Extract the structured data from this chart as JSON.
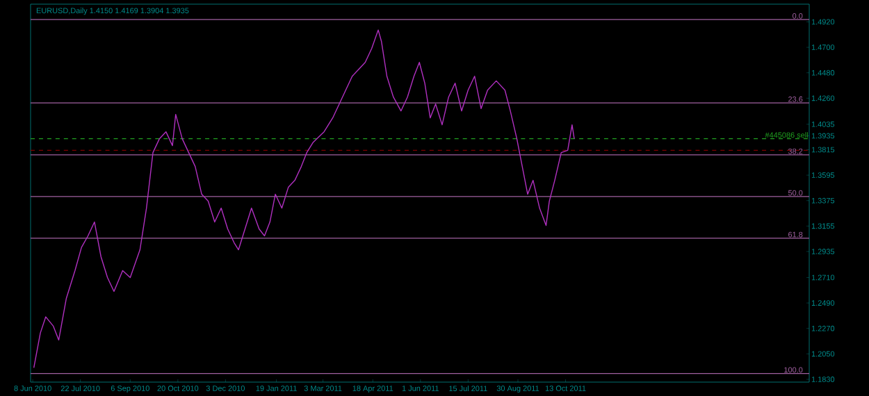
{
  "chart_data": {
    "type": "line",
    "title": "EURUSD,Daily  1.4150 1.4169 1.3904 1.3935",
    "color": "#b030c0",
    "marker": "none",
    "line_style": "solid",
    "x": [
      "2010-06-09",
      "2010-06-15",
      "2010-06-20",
      "2010-06-27",
      "2010-07-02",
      "2010-07-09",
      "2010-07-17",
      "2010-07-23",
      "2010-07-29",
      "2010-08-04",
      "2010-08-10",
      "2010-08-16",
      "2010-08-22",
      "2010-08-30",
      "2010-09-06",
      "2010-09-15",
      "2010-09-21",
      "2010-09-27",
      "2010-10-03",
      "2010-10-09",
      "2010-10-15",
      "2010-10-18",
      "2010-10-24",
      "2010-10-30",
      "2010-11-05",
      "2010-11-11",
      "2010-11-17",
      "2010-11-23",
      "2010-11-29",
      "2010-12-05",
      "2010-12-11",
      "2010-12-15",
      "2010-12-23",
      "2010-12-27",
      "2011-01-03",
      "2011-01-08",
      "2011-01-13",
      "2011-01-18",
      "2011-01-24",
      "2011-01-30",
      "2011-02-05",
      "2011-02-11",
      "2011-02-16",
      "2011-02-22",
      "2011-03-04",
      "2011-03-12",
      "2011-03-18",
      "2011-03-24",
      "2011-03-30",
      "2011-04-05",
      "2011-04-11",
      "2011-04-17",
      "2011-04-23",
      "2011-04-26",
      "2011-05-01",
      "2011-05-07",
      "2011-05-14",
      "2011-05-20",
      "2011-05-26",
      "2011-05-31",
      "2011-06-05",
      "2011-06-10",
      "2011-06-15",
      "2011-06-21",
      "2011-06-27",
      "2011-07-03",
      "2011-07-09",
      "2011-07-15",
      "2011-07-21",
      "2011-07-27",
      "2011-08-02",
      "2011-08-10",
      "2011-08-18",
      "2011-08-23",
      "2011-08-29",
      "2011-09-03",
      "2011-09-08",
      "2011-09-13",
      "2011-09-19",
      "2011-09-25",
      "2011-09-28",
      "2011-10-03",
      "2011-10-09",
      "2011-10-15",
      "2011-10-19",
      "2011-10-21"
    ],
    "values": [
      1.193,
      1.223,
      1.237,
      1.229,
      1.217,
      1.253,
      1.277,
      1.297,
      1.307,
      1.319,
      1.289,
      1.271,
      1.259,
      1.277,
      1.271,
      1.295,
      1.331,
      1.379,
      1.391,
      1.397,
      1.385,
      1.412,
      1.391,
      1.379,
      1.367,
      1.343,
      1.337,
      1.319,
      1.331,
      1.313,
      1.301,
      1.295,
      1.319,
      1.331,
      1.313,
      1.307,
      1.319,
      1.343,
      1.331,
      1.349,
      1.355,
      1.367,
      1.379,
      1.388,
      1.397,
      1.409,
      1.421,
      1.433,
      1.445,
      1.451,
      1.457,
      1.469,
      1.485,
      1.475,
      1.445,
      1.427,
      1.415,
      1.427,
      1.445,
      1.457,
      1.439,
      1.409,
      1.421,
      1.403,
      1.427,
      1.439,
      1.415,
      1.433,
      1.445,
      1.417,
      1.433,
      1.441,
      1.433,
      1.415,
      1.391,
      1.367,
      1.343,
      1.355,
      1.331,
      1.316,
      1.337,
      1.355,
      1.379,
      1.381,
      1.403,
      1.391
    ],
    "xlim": [
      "2010-06-06",
      "2012-05-25"
    ],
    "xticks": [
      {
        "value": "2010-06-08",
        "label": "8 Jun 2010"
      },
      {
        "value": "2010-07-22",
        "label": "22 Jul 2010"
      },
      {
        "value": "2010-09-06",
        "label": "6 Sep 2010"
      },
      {
        "value": "2010-10-20",
        "label": "20 Oct 2010"
      },
      {
        "value": "2010-12-03",
        "label": "3 Dec 2010"
      },
      {
        "value": "2011-01-19",
        "label": "19 Jan 2011"
      },
      {
        "value": "2011-03-03",
        "label": "3 Mar 2011"
      },
      {
        "value": "2011-04-18",
        "label": "18 Apr 2011"
      },
      {
        "value": "2011-06-01",
        "label": "1 Jun 2011"
      },
      {
        "value": "2011-07-15",
        "label": "15 Jul 2011"
      },
      {
        "value": "2011-08-30",
        "label": "30 Aug 2011"
      },
      {
        "value": "2011-10-13",
        "label": "13 Oct 2011"
      }
    ],
    "ylim": [
      1.1806,
      1.5073
    ],
    "yticks": [
      {
        "value": 1.492,
        "label": "1.4920"
      },
      {
        "value": 1.47,
        "label": "1.4700"
      },
      {
        "value": 1.448,
        "label": "1.4480"
      },
      {
        "value": 1.426,
        "label": "1.4260"
      },
      {
        "value": 1.4035,
        "label": "1.4035"
      },
      {
        "value": 1.3935,
        "label": "1.3935"
      },
      {
        "value": 1.3815,
        "label": "1.3815"
      },
      {
        "value": 1.3595,
        "label": "1.3595"
      },
      {
        "value": 1.3375,
        "label": "1.3375"
      },
      {
        "value": 1.3155,
        "label": "1.3155"
      },
      {
        "value": 1.2935,
        "label": "1.2935"
      },
      {
        "value": 1.271,
        "label": "1.2710"
      },
      {
        "value": 1.249,
        "label": "1.2490"
      },
      {
        "value": 1.227,
        "label": "1.2270"
      },
      {
        "value": 1.205,
        "label": "1.2050"
      },
      {
        "value": 1.183,
        "label": "1.1830"
      }
    ],
    "ref_lines": [
      {
        "axis": "y",
        "value": 1.494,
        "color": "#a060a0",
        "line_style": "solid"
      },
      {
        "axis": "y",
        "value": 1.422,
        "color": "#a060a0",
        "line_style": "solid"
      },
      {
        "axis": "y",
        "value": 1.391,
        "label": "#445086 sell",
        "color": "#20a020",
        "line_style": "dashed"
      },
      {
        "axis": "y",
        "value": 1.381,
        "color": "#800000",
        "line_style": "dashed"
      },
      {
        "axis": "y",
        "value": 1.377,
        "color": "#a060a0",
        "line_style": "solid"
      },
      {
        "axis": "y",
        "value": 1.341,
        "color": "#a060a0",
        "line_style": "solid"
      },
      {
        "axis": "y",
        "value": 1.305,
        "color": "#a060a0",
        "line_style": "solid"
      },
      {
        "axis": "y",
        "value": 1.188,
        "color": "#a060a0",
        "line_style": "solid"
      }
    ],
    "annotations": [
      {
        "text": "0.0",
        "x": "2012-05-20",
        "y": 1.494
      },
      {
        "text": "23.6",
        "x": "2012-05-20",
        "y": 1.422
      },
      {
        "text": "38.2",
        "x": "2012-05-20",
        "y": 1.377
      },
      {
        "text": "50.0",
        "x": "2012-05-20",
        "y": 1.341
      },
      {
        "text": "61.8",
        "x": "2012-05-20",
        "y": 1.305
      },
      {
        "text": "100.0",
        "x": "2012-05-20",
        "y": 1.188
      }
    ]
  }
}
